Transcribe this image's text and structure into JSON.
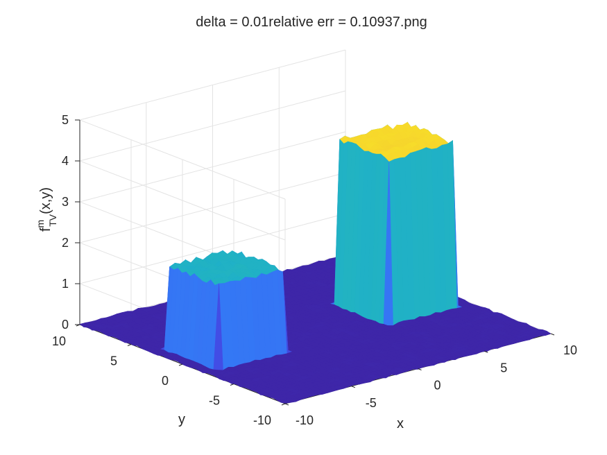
{
  "chart_data": {
    "type": "surface",
    "title": "delta = 0.01relative err = 0.10937.png",
    "xlabel": "x",
    "ylabel": "y",
    "zlabel": {
      "base": "f",
      "superscript": "m",
      "subscript": "TV",
      "suffix": "(x,y)"
    },
    "xlim": [
      -10,
      10
    ],
    "ylim": [
      -10,
      10
    ],
    "zlim": [
      0,
      5
    ],
    "x_ticks": [
      -10,
      -5,
      0,
      5,
      10
    ],
    "y_ticks": [
      -10,
      -5,
      0,
      5,
      10
    ],
    "z_ticks": [
      0,
      1,
      2,
      3,
      4,
      5
    ],
    "x_tick_labels": [
      "-10",
      "-5",
      "0",
      "5",
      "10"
    ],
    "y_tick_labels": [
      "-10",
      "-5",
      "0",
      "5",
      "10"
    ],
    "z_tick_labels": [
      "0",
      "1",
      "2",
      "3",
      "4",
      "5"
    ],
    "grid": true,
    "colormap": "parula",
    "colormap_stops": [
      "#3e26a8",
      "#4354ef",
      "#2e87f7",
      "#1aa9d7",
      "#2ec3a0",
      "#9cc548",
      "#f2b938",
      "#f9e825"
    ],
    "noise_level": 0.05,
    "features": [
      {
        "shape": "box",
        "x_range": [
          -9,
          -4
        ],
        "y_range": [
          -2,
          3
        ],
        "height": 2.0
      },
      {
        "shape": "box",
        "x_range": [
          4,
          9
        ],
        "y_range": [
          -2,
          3
        ],
        "height": 4.0
      }
    ]
  }
}
